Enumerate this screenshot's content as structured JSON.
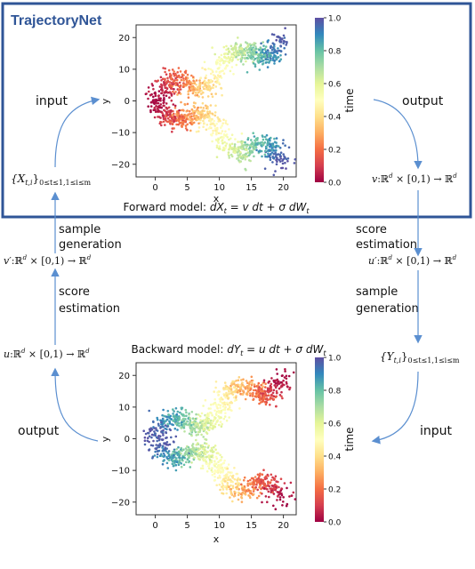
{
  "title": "TrajectoryNet",
  "labels": {
    "input_top": "input",
    "output_top": "output",
    "output_bottom": "output",
    "input_bottom": "input",
    "sample_generation_left": [
      "sample",
      "generation"
    ],
    "score_estimation_left": [
      "score",
      "estimation"
    ],
    "score_estimation_right": [
      "score",
      "estimation"
    ],
    "sample_generation_right": [
      "sample",
      "generation"
    ]
  },
  "math": {
    "x_data": "{X",
    "x_data_sub": "t,i",
    "x_data_range": "0≤t≤1,1≤i≤m",
    "y_data": "{Y",
    "y_data_sub": "t,i",
    "y_data_range": "0≤t≤1,1≤i≤m",
    "v_field_name": "v",
    "v_prime_field_name": "v′",
    "u_field_name": "u",
    "u_prime_field_name": "u′",
    "field_domain": ":ℝ",
    "field_mid": " × [0,1) → ℝ",
    "field_sup": "d",
    "forward_model_label": "Forward model: ",
    "forward_model_eq": "dX",
    "forward_model_sub": "t",
    "forward_model_rest": " = v dt + σ dW",
    "forward_model_sub2": "t",
    "backward_model_label": "Backward model: ",
    "backward_model_eq": "dY",
    "backward_model_sub": "t",
    "backward_model_rest": " = u dt + σ dW",
    "backward_model_sub2": "t"
  },
  "colors": {
    "frame": "#2f5597",
    "title": "#2f5597",
    "arrow": "#5b8fd0"
  },
  "chart_data": [
    {
      "type": "scatter",
      "name": "forward",
      "xlabel": "x",
      "ylabel": "y",
      "xticks": [
        "0",
        "5",
        "10",
        "15",
        "20"
      ],
      "yticks": [
        "20",
        "10",
        "0",
        "−10",
        "−20"
      ],
      "xlim": [
        -3,
        22
      ],
      "ylim": [
        -24,
        24
      ],
      "colorbar_label": "time",
      "colorbar_ticks": [
        "1.0",
        "0.8",
        "0.6",
        "0.4",
        "0.2",
        "0.0"
      ],
      "colormap": "Spectral",
      "start_at_left": "red (t=0)",
      "end_at_right": "blue (t=1)",
      "branches": "two mirrored wavy branches from (0,0) to (20,20) and (20,-20)"
    },
    {
      "type": "scatter",
      "name": "backward",
      "xlabel": "x",
      "ylabel": "y",
      "xticks": [
        "0",
        "5",
        "10",
        "15",
        "20"
      ],
      "yticks": [
        "20",
        "10",
        "0",
        "−10",
        "−20"
      ],
      "xlim": [
        -3,
        22
      ],
      "ylim": [
        -24,
        24
      ],
      "colorbar_label": "time",
      "colorbar_ticks": [
        "1.0",
        "0.8",
        "0.6",
        "0.4",
        "0.2",
        "0.0"
      ],
      "colormap": "Spectral",
      "start_at_left": "blue (t=1)",
      "end_at_right": "red (t=0)",
      "branches": "two mirrored wavy branches from (0,0) to (20,20) and (20,-20)"
    }
  ]
}
